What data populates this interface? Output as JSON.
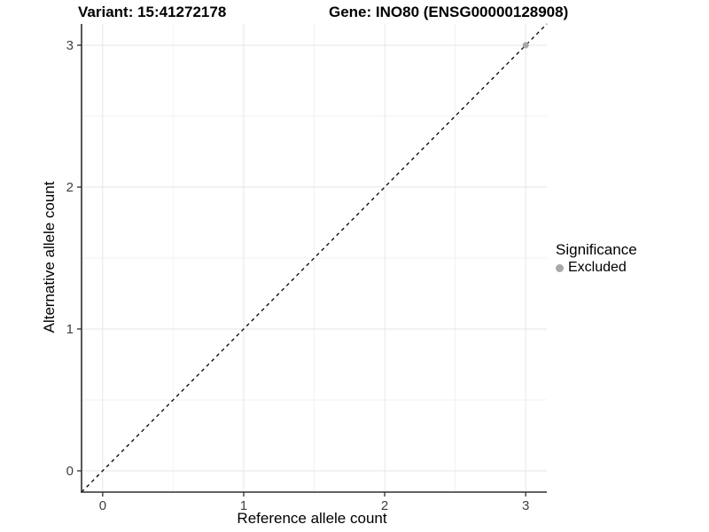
{
  "figure": {
    "titles": {
      "variant": "Variant: 15:41272178",
      "gene": "Gene: INO80 (ENSG00000128908)"
    },
    "axes": {
      "x_title": "Reference allele count",
      "y_title": "Alternative allele count"
    },
    "legend": {
      "title": "Significance",
      "items": [
        {
          "label": "Excluded",
          "color": "#a8a8a8"
        }
      ]
    }
  },
  "chart_data": {
    "type": "scatter",
    "title": "Variant: 15:41272178  /  Gene: INO80 (ENSG00000128908)",
    "xlabel": "Reference allele count",
    "ylabel": "Alternative allele count",
    "xlim": [
      -0.15,
      3.15
    ],
    "ylim": [
      -0.15,
      3.15
    ],
    "xticks": [
      0,
      1,
      2,
      3
    ],
    "yticks": [
      0,
      1,
      2,
      3
    ],
    "xticks_minor": [
      0.5,
      1.5,
      2.5
    ],
    "yticks_minor": [
      0.5,
      1.5,
      2.5
    ],
    "grid": "major+minor",
    "legend_position": "right",
    "legend_title": "Significance",
    "series": [
      {
        "name": "Excluded",
        "color": "#a8a8a8",
        "marker": "circle",
        "points": [
          {
            "x": 3,
            "y": 3
          }
        ]
      }
    ],
    "reference_line": {
      "kind": "identity",
      "style": "dashed",
      "color": "#000000"
    }
  },
  "style": {
    "background": "#ffffff",
    "grid_major": "#e6e6e6",
    "grid_minor": "#f2f2f2",
    "axis_line": "#2e2e2e",
    "tick_label_color": "#404040",
    "tick_label_size": 15,
    "point_radius": 3.5
  }
}
